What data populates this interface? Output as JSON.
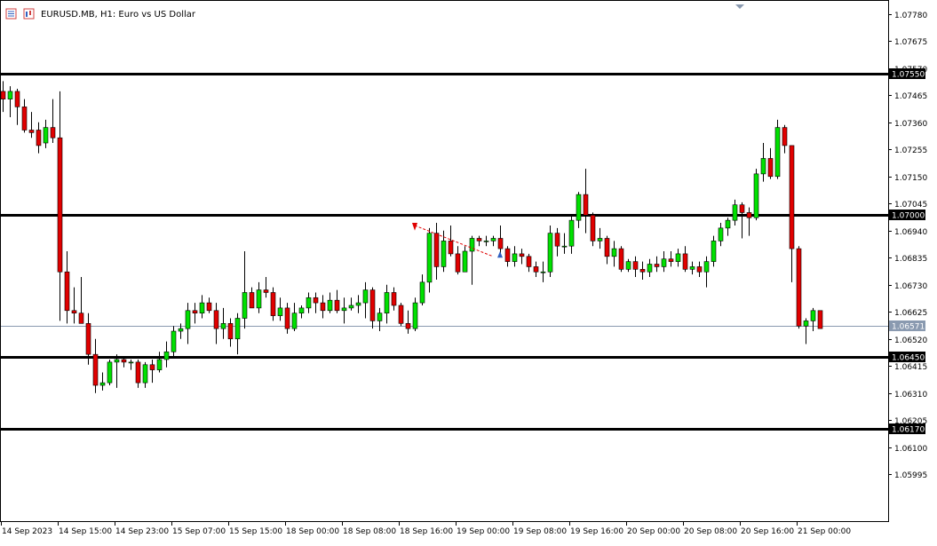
{
  "header": {
    "title": "EURUSD.MB, H1:  Euro vs US Dollar"
  },
  "chart_data": {
    "type": "candlestick",
    "symbol": "EURUSD.MB",
    "timeframe": "H1",
    "description": "Euro vs US Dollar",
    "ylim": [
      1.0592,
      1.078
    ],
    "y_ticks": [
      "1.07780",
      "1.07675",
      "1.07570",
      "1.07465",
      "1.07360",
      "1.07255",
      "1.07150",
      "1.07045",
      "1.06940",
      "1.06835",
      "1.06730",
      "1.06625",
      "1.06520",
      "1.06415",
      "1.06310",
      "1.06205",
      "1.06100",
      "1.05995"
    ],
    "x_ticks": [
      "14 Sep 2023",
      "14 Sep 15:00",
      "14 Sep 23:00",
      "15 Sep 07:00",
      "15 Sep 15:00",
      "18 Sep 00:00",
      "18 Sep 08:00",
      "18 Sep 16:00",
      "19 Sep 00:00",
      "19 Sep 08:00",
      "19 Sep 16:00",
      "20 Sep 00:00",
      "20 Sep 08:00",
      "20 Sep 16:00",
      "21 Sep 00:00"
    ],
    "horizontal_levels": [
      {
        "price": 1.0755,
        "label": "1.07550"
      },
      {
        "price": 1.07,
        "label": "1.07000"
      },
      {
        "price": 1.0645,
        "label": "1.06450"
      },
      {
        "price": 1.0617,
        "label": "1.06170"
      }
    ],
    "current_price": {
      "price": 1.06571,
      "label": "1.06571"
    },
    "colors": {
      "bull": "#00e000",
      "bear": "#e00000",
      "level": "#000000",
      "current": "#8a9ab0",
      "grid": "#000000"
    },
    "candles": [
      {
        "o": 1.0748,
        "h": 1.0752,
        "l": 1.074,
        "c": 1.0745
      },
      {
        "o": 1.0745,
        "h": 1.075,
        "l": 1.0738,
        "c": 1.0748
      },
      {
        "o": 1.0748,
        "h": 1.0749,
        "l": 1.0735,
        "c": 1.0742
      },
      {
        "o": 1.0742,
        "h": 1.0745,
        "l": 1.0732,
        "c": 1.0733
      },
      {
        "o": 1.0733,
        "h": 1.074,
        "l": 1.073,
        "c": 1.0732
      },
      {
        "o": 1.0733,
        "h": 1.0736,
        "l": 1.0724,
        "c": 1.0727
      },
      {
        "o": 1.0728,
        "h": 1.0737,
        "l": 1.0726,
        "c": 1.0734
      },
      {
        "o": 1.0734,
        "h": 1.0745,
        "l": 1.0728,
        "c": 1.073
      },
      {
        "o": 1.073,
        "h": 1.0748,
        "l": 1.0659,
        "c": 1.0678
      },
      {
        "o": 1.0678,
        "h": 1.0686,
        "l": 1.0658,
        "c": 1.0663
      },
      {
        "o": 1.0663,
        "h": 1.0672,
        "l": 1.0658,
        "c": 1.0662
      },
      {
        "o": 1.0662,
        "h": 1.0676,
        "l": 1.0658,
        "c": 1.0658
      },
      {
        "o": 1.0658,
        "h": 1.0662,
        "l": 1.0642,
        "c": 1.0646
      },
      {
        "o": 1.0646,
        "h": 1.0652,
        "l": 1.0631,
        "c": 1.0634
      },
      {
        "o": 1.0634,
        "h": 1.0639,
        "l": 1.0632,
        "c": 1.0635
      },
      {
        "o": 1.0635,
        "h": 1.0644,
        "l": 1.0634,
        "c": 1.0643
      },
      {
        "o": 1.0643,
        "h": 1.0646,
        "l": 1.0633,
        "c": 1.0644
      },
      {
        "o": 1.0644,
        "h": 1.0645,
        "l": 1.0641,
        "c": 1.0643
      },
      {
        "o": 1.0643,
        "h": 1.0644,
        "l": 1.064,
        "c": 1.0643
      },
      {
        "o": 1.0643,
        "h": 1.0644,
        "l": 1.0633,
        "c": 1.0635
      },
      {
        "o": 1.0635,
        "h": 1.0643,
        "l": 1.0633,
        "c": 1.0642
      },
      {
        "o": 1.0642,
        "h": 1.0644,
        "l": 1.0635,
        "c": 1.064
      },
      {
        "o": 1.064,
        "h": 1.0647,
        "l": 1.0639,
        "c": 1.0644
      },
      {
        "o": 1.0644,
        "h": 1.0651,
        "l": 1.0641,
        "c": 1.0647
      },
      {
        "o": 1.0647,
        "h": 1.0657,
        "l": 1.0645,
        "c": 1.0655
      },
      {
        "o": 1.0655,
        "h": 1.0658,
        "l": 1.0652,
        "c": 1.0656
      },
      {
        "o": 1.0656,
        "h": 1.0666,
        "l": 1.065,
        "c": 1.0663
      },
      {
        "o": 1.0663,
        "h": 1.0666,
        "l": 1.0658,
        "c": 1.0662
      },
      {
        "o": 1.0662,
        "h": 1.0669,
        "l": 1.066,
        "c": 1.0666
      },
      {
        "o": 1.0666,
        "h": 1.0668,
        "l": 1.0662,
        "c": 1.0663
      },
      {
        "o": 1.0663,
        "h": 1.0666,
        "l": 1.065,
        "c": 1.0656
      },
      {
        "o": 1.0656,
        "h": 1.0664,
        "l": 1.0652,
        "c": 1.0658
      },
      {
        "o": 1.0658,
        "h": 1.066,
        "l": 1.0649,
        "c": 1.0652
      },
      {
        "o": 1.0652,
        "h": 1.0662,
        "l": 1.0646,
        "c": 1.066
      },
      {
        "o": 1.066,
        "h": 1.0686,
        "l": 1.0656,
        "c": 1.067
      },
      {
        "o": 1.067,
        "h": 1.0672,
        "l": 1.0664,
        "c": 1.0664
      },
      {
        "o": 1.0664,
        "h": 1.0674,
        "l": 1.0662,
        "c": 1.0671
      },
      {
        "o": 1.0671,
        "h": 1.0676,
        "l": 1.0668,
        "c": 1.067
      },
      {
        "o": 1.067,
        "h": 1.0672,
        "l": 1.0659,
        "c": 1.0661
      },
      {
        "o": 1.0661,
        "h": 1.0668,
        "l": 1.0659,
        "c": 1.0664
      },
      {
        "o": 1.0664,
        "h": 1.0666,
        "l": 1.0654,
        "c": 1.0656
      },
      {
        "o": 1.0656,
        "h": 1.0666,
        "l": 1.0655,
        "c": 1.0662
      },
      {
        "o": 1.0662,
        "h": 1.0665,
        "l": 1.066,
        "c": 1.0664
      },
      {
        "o": 1.0664,
        "h": 1.067,
        "l": 1.0662,
        "c": 1.0668
      },
      {
        "o": 1.0668,
        "h": 1.067,
        "l": 1.0662,
        "c": 1.0666
      },
      {
        "o": 1.0666,
        "h": 1.0669,
        "l": 1.066,
        "c": 1.0663
      },
      {
        "o": 1.0663,
        "h": 1.067,
        "l": 1.0662,
        "c": 1.0667
      },
      {
        "o": 1.0667,
        "h": 1.0671,
        "l": 1.0662,
        "c": 1.0663
      },
      {
        "o": 1.0663,
        "h": 1.0668,
        "l": 1.0658,
        "c": 1.0664
      },
      {
        "o": 1.0664,
        "h": 1.0668,
        "l": 1.0663,
        "c": 1.0665
      },
      {
        "o": 1.0665,
        "h": 1.0669,
        "l": 1.0662,
        "c": 1.0666
      },
      {
        "o": 1.0666,
        "h": 1.0674,
        "l": 1.066,
        "c": 1.0671
      },
      {
        "o": 1.0671,
        "h": 1.0672,
        "l": 1.0656,
        "c": 1.0659
      },
      {
        "o": 1.0659,
        "h": 1.0664,
        "l": 1.0655,
        "c": 1.0662
      },
      {
        "o": 1.0662,
        "h": 1.0673,
        "l": 1.0658,
        "c": 1.067
      },
      {
        "o": 1.067,
        "h": 1.0672,
        "l": 1.0663,
        "c": 1.0665
      },
      {
        "o": 1.0665,
        "h": 1.0666,
        "l": 1.0657,
        "c": 1.0658
      },
      {
        "o": 1.0658,
        "h": 1.0663,
        "l": 1.0654,
        "c": 1.0656
      },
      {
        "o": 1.0656,
        "h": 1.0668,
        "l": 1.0655,
        "c": 1.0666
      },
      {
        "o": 1.0666,
        "h": 1.0677,
        "l": 1.0665,
        "c": 1.0674
      },
      {
        "o": 1.0674,
        "h": 1.0695,
        "l": 1.067,
        "c": 1.0693
      },
      {
        "o": 1.0693,
        "h": 1.0697,
        "l": 1.0675,
        "c": 1.068
      },
      {
        "o": 1.068,
        "h": 1.0694,
        "l": 1.0678,
        "c": 1.069
      },
      {
        "o": 1.069,
        "h": 1.0696,
        "l": 1.0684,
        "c": 1.0685
      },
      {
        "o": 1.0685,
        "h": 1.0688,
        "l": 1.0677,
        "c": 1.0678
      },
      {
        "o": 1.0678,
        "h": 1.0688,
        "l": 1.0678,
        "c": 1.0686
      },
      {
        "o": 1.0686,
        "h": 1.0692,
        "l": 1.0673,
        "c": 1.0691
      },
      {
        "o": 1.0691,
        "h": 1.0692,
        "l": 1.0688,
        "c": 1.069
      },
      {
        "o": 1.069,
        "h": 1.0692,
        "l": 1.0688,
        "c": 1.069
      },
      {
        "o": 1.069,
        "h": 1.0692,
        "l": 1.0688,
        "c": 1.0691
      },
      {
        "o": 1.0691,
        "h": 1.0696,
        "l": 1.0685,
        "c": 1.0687
      },
      {
        "o": 1.0687,
        "h": 1.0688,
        "l": 1.068,
        "c": 1.0682
      },
      {
        "o": 1.0682,
        "h": 1.0688,
        "l": 1.068,
        "c": 1.0685
      },
      {
        "o": 1.0685,
        "h": 1.0687,
        "l": 1.0681,
        "c": 1.0684
      },
      {
        "o": 1.0684,
        "h": 1.0685,
        "l": 1.0678,
        "c": 1.068
      },
      {
        "o": 1.068,
        "h": 1.0682,
        "l": 1.0676,
        "c": 1.0678
      },
      {
        "o": 1.0678,
        "h": 1.0682,
        "l": 1.0674,
        "c": 1.0678
      },
      {
        "o": 1.0678,
        "h": 1.0696,
        "l": 1.0676,
        "c": 1.0693
      },
      {
        "o": 1.0693,
        "h": 1.0695,
        "l": 1.0684,
        "c": 1.0688
      },
      {
        "o": 1.0688,
        "h": 1.0693,
        "l": 1.0685,
        "c": 1.0688
      },
      {
        "o": 1.0688,
        "h": 1.07,
        "l": 1.0685,
        "c": 1.0698
      },
      {
        "o": 1.0698,
        "h": 1.0709,
        "l": 1.0695,
        "c": 1.0708
      },
      {
        "o": 1.0708,
        "h": 1.0718,
        "l": 1.0693,
        "c": 1.07
      },
      {
        "o": 1.07,
        "h": 1.0701,
        "l": 1.0688,
        "c": 1.069
      },
      {
        "o": 1.069,
        "h": 1.0695,
        "l": 1.0687,
        "c": 1.0691
      },
      {
        "o": 1.0691,
        "h": 1.0692,
        "l": 1.0681,
        "c": 1.0684
      },
      {
        "o": 1.0684,
        "h": 1.069,
        "l": 1.068,
        "c": 1.0687
      },
      {
        "o": 1.0687,
        "h": 1.0688,
        "l": 1.0678,
        "c": 1.0679
      },
      {
        "o": 1.0679,
        "h": 1.0683,
        "l": 1.0678,
        "c": 1.0682
      },
      {
        "o": 1.0682,
        "h": 1.0684,
        "l": 1.0676,
        "c": 1.0679
      },
      {
        "o": 1.0679,
        "h": 1.0682,
        "l": 1.0675,
        "c": 1.0678
      },
      {
        "o": 1.0678,
        "h": 1.0683,
        "l": 1.0676,
        "c": 1.0681
      },
      {
        "o": 1.0681,
        "h": 1.0684,
        "l": 1.0678,
        "c": 1.068
      },
      {
        "o": 1.068,
        "h": 1.0686,
        "l": 1.0678,
        "c": 1.0683
      },
      {
        "o": 1.0683,
        "h": 1.0686,
        "l": 1.068,
        "c": 1.0682
      },
      {
        "o": 1.0682,
        "h": 1.0687,
        "l": 1.068,
        "c": 1.0685
      },
      {
        "o": 1.0685,
        "h": 1.0688,
        "l": 1.0678,
        "c": 1.0679
      },
      {
        "o": 1.0679,
        "h": 1.0682,
        "l": 1.0677,
        "c": 1.068
      },
      {
        "o": 1.068,
        "h": 1.0682,
        "l": 1.0676,
        "c": 1.0678
      },
      {
        "o": 1.0678,
        "h": 1.0684,
        "l": 1.0672,
        "c": 1.0682
      },
      {
        "o": 1.0682,
        "h": 1.0692,
        "l": 1.068,
        "c": 1.069
      },
      {
        "o": 1.069,
        "h": 1.0697,
        "l": 1.0688,
        "c": 1.0695
      },
      {
        "o": 1.0695,
        "h": 1.0699,
        "l": 1.0692,
        "c": 1.0698
      },
      {
        "o": 1.0698,
        "h": 1.0706,
        "l": 1.0696,
        "c": 1.0704
      },
      {
        "o": 1.0704,
        "h": 1.0705,
        "l": 1.0691,
        "c": 1.0701
      },
      {
        "o": 1.0701,
        "h": 1.0703,
        "l": 1.0692,
        "c": 1.0699
      },
      {
        "o": 1.0699,
        "h": 1.0718,
        "l": 1.0698,
        "c": 1.0716
      },
      {
        "o": 1.0716,
        "h": 1.0728,
        "l": 1.0713,
        "c": 1.0722
      },
      {
        "o": 1.0722,
        "h": 1.0726,
        "l": 1.0714,
        "c": 1.0715
      },
      {
        "o": 1.0715,
        "h": 1.0737,
        "l": 1.0714,
        "c": 1.0734
      },
      {
        "o": 1.0734,
        "h": 1.0735,
        "l": 1.0724,
        "c": 1.0727
      },
      {
        "o": 1.0727,
        "h": 1.0727,
        "l": 1.0674,
        "c": 1.0687
      },
      {
        "o": 1.0687,
        "h": 1.0688,
        "l": 1.0656,
        "c": 1.0657
      },
      {
        "o": 1.0657,
        "h": 1.066,
        "l": 1.065,
        "c": 1.0659
      },
      {
        "o": 1.0659,
        "h": 1.0664,
        "l": 1.0655,
        "c": 1.0663
      },
      {
        "o": 1.0663,
        "h": 1.0663,
        "l": 1.0656,
        "c": 1.0656
      }
    ]
  }
}
